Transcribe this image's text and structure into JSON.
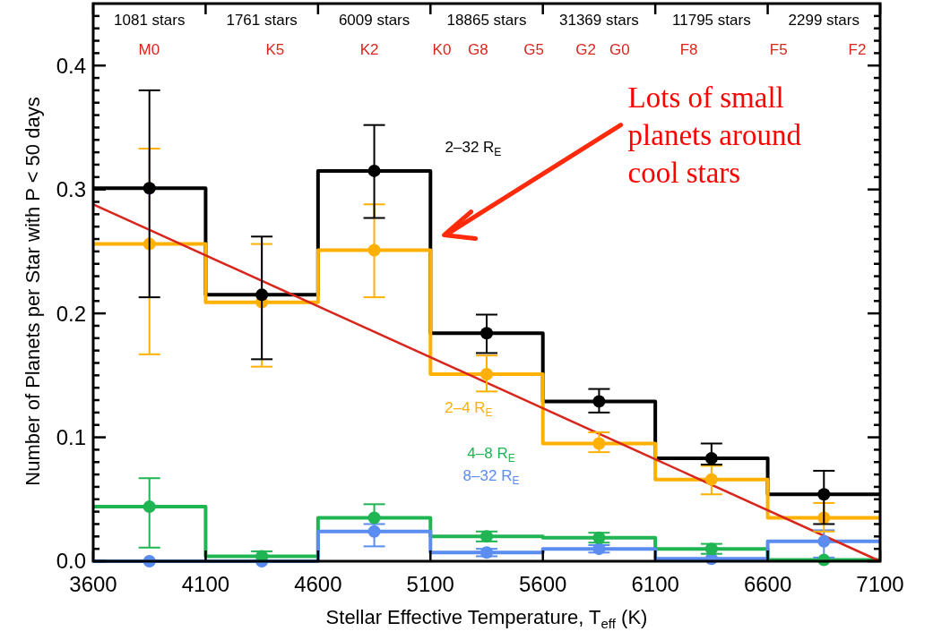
{
  "chart_data": {
    "type": "step",
    "xlabel": "Stellar Effective Temperature, T$_{eff}$ (K)",
    "ylabel": "Number of Planets per Star with P < 50 days",
    "xlim": [
      3600,
      7100
    ],
    "xticks": [
      3600,
      4100,
      4600,
      5100,
      5600,
      6100,
      6600,
      7100
    ],
    "ylim": [
      0,
      0.45
    ],
    "yticks": [
      {
        "value": 0,
        "label": "0.0"
      },
      {
        "value": 0.01,
        "label": null
      },
      {
        "value": 0.02,
        "label": null
      },
      {
        "value": 0.03,
        "label": null
      },
      {
        "value": 0.04,
        "label": null
      },
      {
        "value": 0.05,
        "label": null
      },
      {
        "value": 0.06,
        "label": null
      },
      {
        "value": 0.07,
        "label": null
      },
      {
        "value": 0.08,
        "label": null
      },
      {
        "value": 0.09,
        "label": null
      },
      {
        "value": 0.1,
        "label": "0.1"
      },
      {
        "value": 0.11,
        "label": null
      },
      {
        "value": 0.12,
        "label": null
      },
      {
        "value": 0.13,
        "label": null
      },
      {
        "value": 0.14,
        "label": null
      },
      {
        "value": 0.15,
        "label": null
      },
      {
        "value": 0.16,
        "label": null
      },
      {
        "value": 0.17,
        "label": null
      },
      {
        "value": 0.18,
        "label": null
      },
      {
        "value": 0.19,
        "label": null
      },
      {
        "value": 0.2,
        "label": "0.2"
      },
      {
        "value": 0.21,
        "label": null
      },
      {
        "value": 0.22,
        "label": null
      },
      {
        "value": 0.23,
        "label": null
      },
      {
        "value": 0.24,
        "label": null
      },
      {
        "value": 0.25,
        "label": null
      },
      {
        "value": 0.26,
        "label": null
      },
      {
        "value": 0.27,
        "label": null
      },
      {
        "value": 0.28,
        "label": null
      },
      {
        "value": 0.29,
        "label": null
      },
      {
        "value": 0.3,
        "label": "0.3"
      },
      {
        "value": 0.31,
        "label": null
      },
      {
        "value": 0.32,
        "label": null
      },
      {
        "value": 0.33,
        "label": null
      },
      {
        "value": 0.34,
        "label": null
      },
      {
        "value": 0.35,
        "label": null
      },
      {
        "value": 0.36,
        "label": null
      },
      {
        "value": 0.37,
        "label": null
      },
      {
        "value": 0.38,
        "label": null
      },
      {
        "value": 0.39,
        "label": null
      },
      {
        "value": 0.4,
        "label": "0.4"
      },
      {
        "value": 0.41,
        "label": null
      },
      {
        "value": 0.42,
        "label": null
      },
      {
        "value": 0.43,
        "label": null
      },
      {
        "value": 0.44,
        "label": null
      }
    ],
    "marker": "circle",
    "series": [
      {
        "name": "2–32 R$_{E}$",
        "color": "#000000",
        "marker": "none",
        "x": [
          3600,
          4100,
          4600,
          5100,
          5600,
          6100,
          6600,
          7100
        ],
        "values": [
          0.301,
          0.215,
          0.315,
          0.184,
          0.129,
          0.083,
          0.054,
          0.054
        ]
      },
      {
        "name": "2–4 R$_{E}$",
        "color": "#ffb000",
        "marker": "none",
        "x": [
          3600,
          4100,
          4600,
          5100,
          5600,
          6100,
          6600,
          7100
        ],
        "values": [
          0.256,
          0.209,
          0.251,
          0.151,
          0.095,
          0.066,
          0.035,
          0.035
        ]
      },
      {
        "name": "4–8 R$_{E}$",
        "color": "#1fb552",
        "marker": "none",
        "x": [
          3600,
          4100,
          4600,
          5100,
          5600,
          6100,
          6600,
          7100
        ],
        "values": [
          0.044,
          0.004,
          0.035,
          0.02,
          0.019,
          0.01,
          0.001,
          0.001
        ]
      },
      {
        "name": "8–32 R$_{E}$",
        "color": "#5b8cf0",
        "marker": "none",
        "x": [
          3600,
          4100,
          4600,
          5100,
          5600,
          6100,
          6600,
          7100
        ],
        "values": [
          0.0,
          0.0,
          0.024,
          0.007,
          0.01,
          0.002,
          0.016,
          0.016
        ]
      },
      {
        "type": "scatter",
        "color": "#000000",
        "x": [
          3850,
          4350,
          4850,
          5350,
          5850,
          6350,
          6850
        ],
        "values": [
          0.301,
          0.215,
          0.315,
          0.184,
          0.129,
          0.083,
          0.054
        ],
        "errors": [
          [
            0.213,
            0.38
          ],
          [
            0.163,
            0.262
          ],
          [
            0.277,
            0.352
          ],
          [
            0.168,
            0.199
          ],
          [
            0.12,
            0.139
          ],
          [
            0.078,
            0.095
          ],
          [
            0.03,
            0.073
          ]
        ]
      },
      {
        "type": "scatter",
        "color": "#ffb000",
        "x": [
          3850,
          4350,
          4850,
          5350,
          5850,
          6350,
          6850
        ],
        "values": [
          0.256,
          0.209,
          0.251,
          0.151,
          0.095,
          0.066,
          0.035
        ],
        "errors": [
          [
            0.167,
            0.333
          ],
          [
            0.157,
            0.256
          ],
          [
            0.213,
            0.288
          ],
          [
            0.137,
            0.166
          ],
          [
            0.088,
            0.104
          ],
          [
            0.054,
            0.077
          ],
          [
            0.024,
            0.047
          ]
        ]
      },
      {
        "type": "scatter",
        "color": "#1fb552",
        "x": [
          3850,
          4350,
          4850,
          5350,
          5850,
          6350,
          6850
        ],
        "values": [
          0.044,
          0.004,
          0.035,
          0.02,
          0.019,
          0.01,
          0.001
        ],
        "errors": [
          [
            0.011,
            0.067
          ],
          0.004,
          [
            0.035,
            0.046
          ],
          0.004,
          0.004,
          0.004,
          null
        ]
      },
      {
        "type": "scatter",
        "color": "#5b8cf0",
        "x": [
          3850,
          4350,
          4850,
          5350,
          5850,
          6350,
          6850
        ],
        "values": [
          0.0,
          0.0,
          0.024,
          0.007,
          0.01,
          0.002,
          0.016
        ],
        "errors": [
          null,
          null,
          [
            0.012,
            0.03
          ],
          0.003,
          0.003,
          null,
          [
            0.003,
            0.025
          ]
        ]
      },
      {
        "type": "line",
        "color": "#d8261c",
        "marker": "none",
        "x": [
          3600,
          7100
        ],
        "values": [
          0.288,
          0.0
        ]
      }
    ],
    "annotations": [
      "1081 stars",
      "1761 stars",
      "6009 stars",
      "18865 stars",
      "31369 stars",
      "11795 stars",
      "2299 stars",
      "M0",
      "K5",
      "K2",
      "K0",
      "G8",
      "G5",
      "G2",
      "G0",
      "F8",
      "F5",
      "F2",
      "Lots of small planets around cool stars"
    ]
  }
}
